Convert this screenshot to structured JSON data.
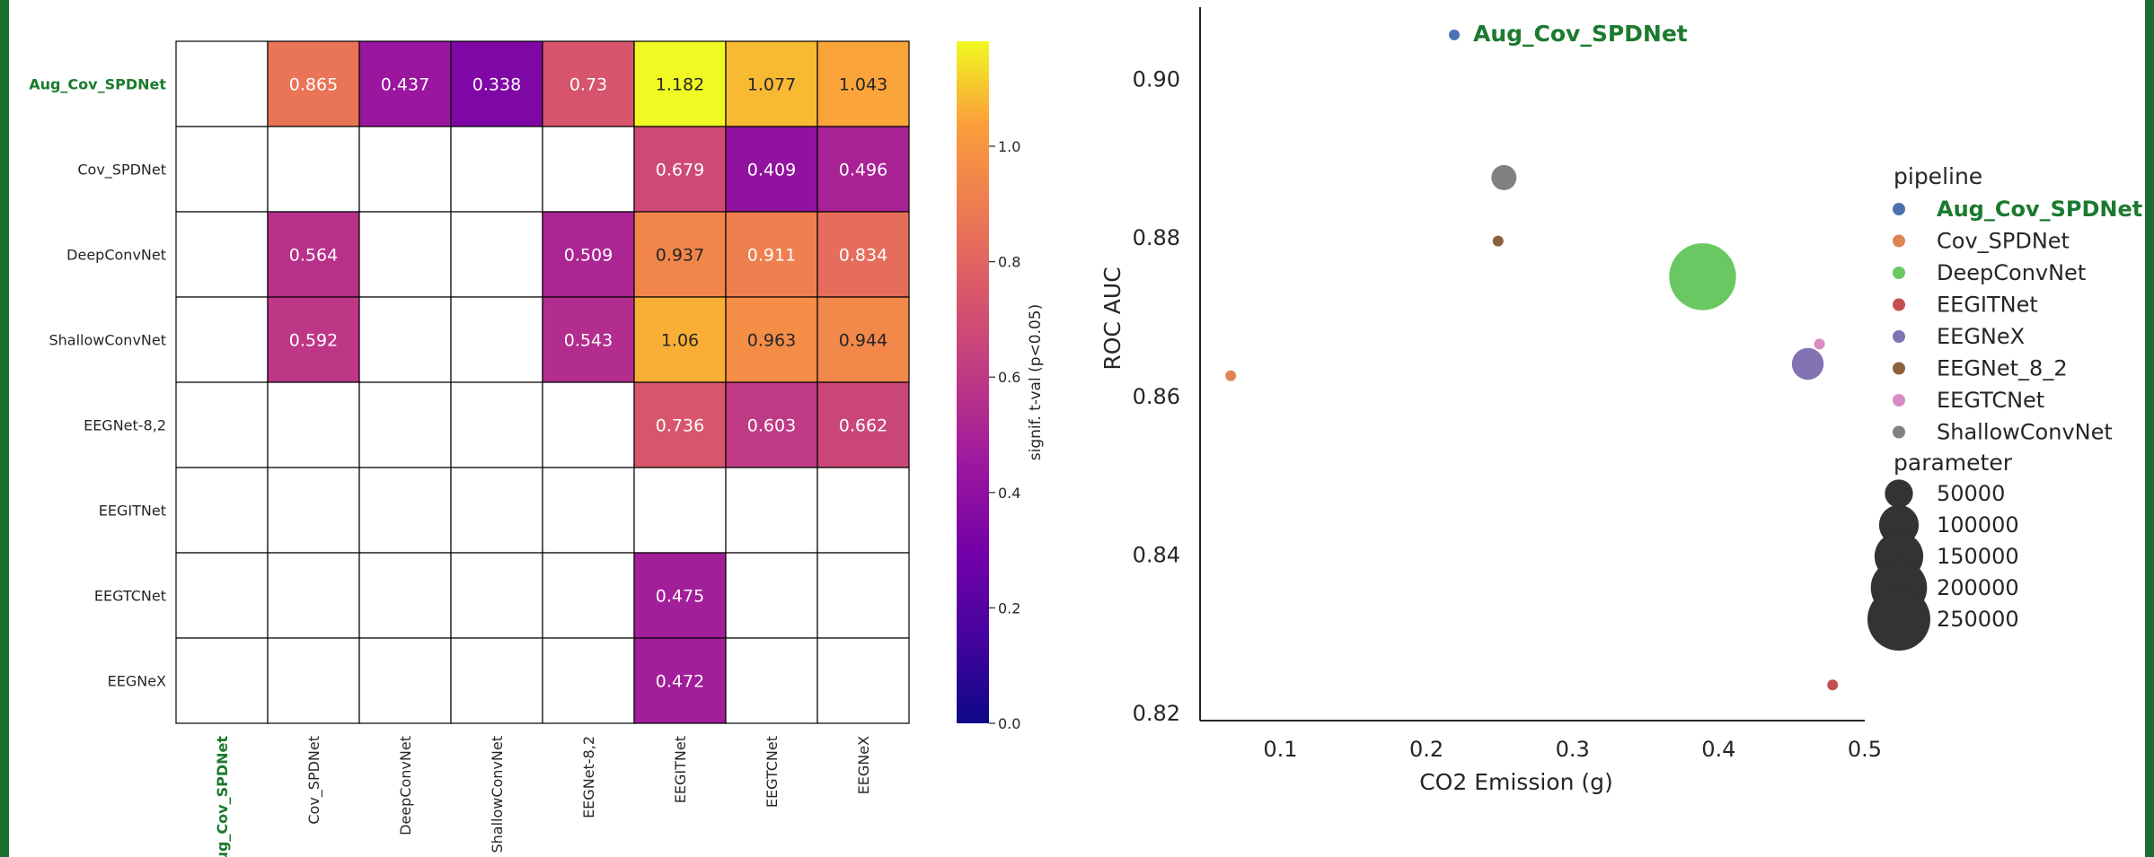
{
  "chart_data": [
    {
      "type": "heatmap",
      "row_labels": [
        "Aug_Cov_SPDNet",
        "Cov_SPDNet",
        "DeepConvNet",
        "ShallowConvNet",
        "EEGNet-8,2",
        "EEGITNet",
        "EEGTCNet",
        "EEGNeX"
      ],
      "col_labels": [
        "Aug_Cov_SPDNet",
        "Cov_SPDNet",
        "DeepConvNet",
        "ShallowConvNet",
        "EEGNet-8,2",
        "EEGITNet",
        "EEGTCNet",
        "EEGNeX"
      ],
      "highlight_label": "Aug_Cov_SPDNet",
      "values": [
        [
          null,
          0.865,
          0.437,
          0.338,
          0.73,
          1.182,
          1.077,
          1.043
        ],
        [
          null,
          null,
          null,
          null,
          null,
          0.679,
          0.409,
          0.496
        ],
        [
          null,
          0.564,
          null,
          null,
          0.509,
          0.937,
          0.911,
          0.834
        ],
        [
          null,
          0.592,
          null,
          null,
          0.543,
          1.06,
          0.963,
          0.944
        ],
        [
          null,
          null,
          null,
          null,
          null,
          0.736,
          0.603,
          0.662
        ],
        [
          null,
          null,
          null,
          null,
          null,
          null,
          null,
          null
        ],
        [
          null,
          null,
          null,
          null,
          null,
          0.475,
          null,
          null
        ],
        [
          null,
          null,
          null,
          null,
          null,
          0.472,
          null,
          null
        ]
      ],
      "colorbar": {
        "label": "signif. t-val (p<0.05)",
        "colormap": "plasma",
        "vmin": 0.0,
        "vmax": 1.182,
        "ticks": [
          0.0,
          0.2,
          0.4,
          0.6,
          0.8,
          1.0
        ],
        "tick_labels": [
          "0.0",
          "0.2",
          "0.4",
          "0.6",
          "0.8",
          "1.0"
        ]
      }
    },
    {
      "type": "scatter",
      "xlabel": "CO2 Emission (g)",
      "ylabel": "ROC AUC",
      "xlim": [
        0.045,
        0.5
      ],
      "ylim": [
        0.819,
        0.909
      ],
      "xticks": [
        0.1,
        0.2,
        0.3,
        0.4,
        0.5
      ],
      "xtick_labels": [
        "0.1",
        "0.2",
        "0.3",
        "0.4",
        "0.5"
      ],
      "yticks": [
        0.82,
        0.84,
        0.86,
        0.88,
        0.9
      ],
      "ytick_labels": [
        "0.82",
        "0.84",
        "0.86",
        "0.88",
        "0.90"
      ],
      "annotation": "Aug_Cov_SPDNet",
      "points": [
        {
          "pipeline": "Aug_Cov_SPDNet",
          "x": 0.219,
          "y": 0.9055,
          "parameter": 1500,
          "color": "#4c72b0"
        },
        {
          "pipeline": "Cov_SPDNet",
          "x": 0.066,
          "y": 0.8625,
          "parameter": 1500,
          "color": "#dd8452"
        },
        {
          "pipeline": "DeepConvNet",
          "x": 0.389,
          "y": 0.875,
          "parameter": 283000,
          "color": "#6ac862"
        },
        {
          "pipeline": "EEGITNet",
          "x": 0.478,
          "y": 0.8235,
          "parameter": 5000,
          "color": "#c44e52"
        },
        {
          "pipeline": "EEGNeX",
          "x": 0.461,
          "y": 0.864,
          "parameter": 64000,
          "color": "#8172b3"
        },
        {
          "pipeline": "EEGNet_8_2",
          "x": 0.249,
          "y": 0.8795,
          "parameter": 3000,
          "color": "#8c613c"
        },
        {
          "pipeline": "EEGTCNet",
          "x": 0.469,
          "y": 0.8665,
          "parameter": 4000,
          "color": "#da8bc3"
        },
        {
          "pipeline": "ShallowConvNet",
          "x": 0.253,
          "y": 0.8875,
          "parameter": 40000,
          "color": "#808080"
        }
      ],
      "legend": {
        "placement": "right",
        "pipeline_title": "pipeline",
        "pipelines": [
          {
            "name": "Aug_Cov_SPDNet",
            "color": "#4c72b0",
            "highlight": true
          },
          {
            "name": "Cov_SPDNet",
            "color": "#dd8452"
          },
          {
            "name": "DeepConvNet",
            "color": "#6ac862"
          },
          {
            "name": "EEGITNet",
            "color": "#c44e52"
          },
          {
            "name": "EEGNeX",
            "color": "#8172b3"
          },
          {
            "name": "EEGNet_8_2",
            "color": "#8c613c"
          },
          {
            "name": "EEGTCNet",
            "color": "#da8bc3"
          },
          {
            "name": "ShallowConvNet",
            "color": "#808080"
          }
        ],
        "parameter_title": "parameter",
        "sizes": [
          {
            "label": "50000",
            "value": 50000
          },
          {
            "label": "100000",
            "value": 100000
          },
          {
            "label": "150000",
            "value": 150000
          },
          {
            "label": "200000",
            "value": 200000
          },
          {
            "label": "250000",
            "value": 250000
          }
        ],
        "size_color": "#333333"
      }
    }
  ]
}
